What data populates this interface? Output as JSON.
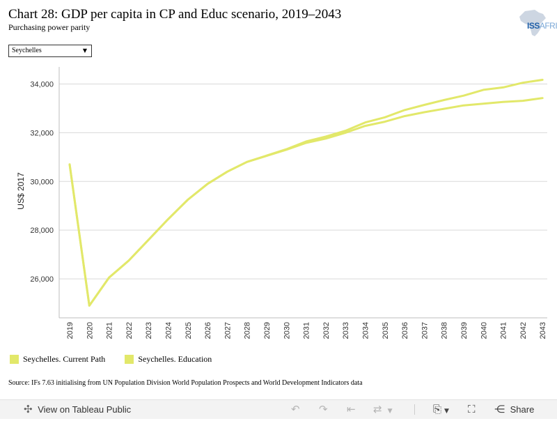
{
  "header": {
    "title": "Chart 28: GDP per capita in CP and Educ scenario, 2019–2043",
    "subtitle": "Purchasing power parity",
    "logo_text_main": "ISS",
    "logo_text_suffix": "AFRICA"
  },
  "filter": {
    "selected": "Seychelles"
  },
  "chart_data": {
    "type": "line",
    "title": "Chart 28: GDP per capita in CP and Educ scenario, 2019–2043",
    "subtitle": "Purchasing power parity",
    "xlabel": "",
    "ylabel": "US$ 2017",
    "x": [
      "2019",
      "2020",
      "2021",
      "2022",
      "2023",
      "2024",
      "2025",
      "2026",
      "2027",
      "2028",
      "2029",
      "2030",
      "2031",
      "2032",
      "2033",
      "2034",
      "2035",
      "2036",
      "2037",
      "2038",
      "2039",
      "2040",
      "2041",
      "2042",
      "2043"
    ],
    "ylim": [
      24400,
      34700
    ],
    "yticks": [
      26000,
      28000,
      30000,
      32000,
      34000
    ],
    "ytick_labels": [
      "26,000",
      "28,000",
      "30,000",
      "32,000",
      "34,000"
    ],
    "grid": "horizontal",
    "legend_position": "bottom-left",
    "series": [
      {
        "name": "Seychelles. Current Path",
        "color": "#e2e86a",
        "values": [
          30700,
          24900,
          26050,
          26750,
          27600,
          28450,
          29250,
          29900,
          30400,
          30800,
          31050,
          31300,
          31580,
          31760,
          32000,
          32280,
          32450,
          32680,
          32840,
          32980,
          33120,
          33190,
          33260,
          33310,
          33420
        ]
      },
      {
        "name": "Seychelles. Education",
        "color": "#e2e86a",
        "values": [
          30700,
          24900,
          26050,
          26750,
          27600,
          28450,
          29250,
          29900,
          30400,
          30800,
          31060,
          31320,
          31640,
          31840,
          32080,
          32420,
          32630,
          32930,
          33140,
          33340,
          33520,
          33760,
          33860,
          34050,
          34170
        ]
      }
    ]
  },
  "source": "Source: IFs 7.63 initialising from UN Population Division World Population Prospects and World Development Indicators data",
  "toolbar": {
    "view_label": "View on Tableau Public",
    "share_label": "Share"
  }
}
